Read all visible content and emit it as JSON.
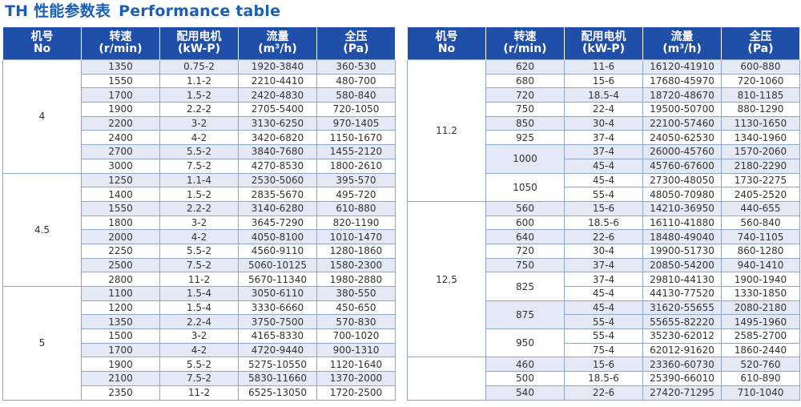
{
  "title": {
    "cn": "TH 性能参数表",
    "en": "Performance table"
  },
  "headers": [
    {
      "line1": "机号",
      "line2": "No"
    },
    {
      "line1": "转速",
      "line2": "(r/min)"
    },
    {
      "line1": "配用电机",
      "line2": "(kW-P)"
    },
    {
      "line1": "流量",
      "line2": "(m³/h)"
    },
    {
      "line1": "全压",
      "line2": "(Pa)"
    }
  ],
  "left_table": [
    {
      "no": "4",
      "rows": [
        {
          "rpm": "1350",
          "motor": "0.75-2",
          "flow": "1920-3840",
          "pressure": "360-530"
        },
        {
          "rpm": "1550",
          "motor": "1.1-2",
          "flow": "2210-4410",
          "pressure": "480-700"
        },
        {
          "rpm": "1700",
          "motor": "1.5-2",
          "flow": "2420-4830",
          "pressure": "580-840"
        },
        {
          "rpm": "1900",
          "motor": "2.2-2",
          "flow": "2705-5400",
          "pressure": "720-1050"
        },
        {
          "rpm": "2200",
          "motor": "3-2",
          "flow": "3130-6250",
          "pressure": "970-1405"
        },
        {
          "rpm": "2400",
          "motor": "4-2",
          "flow": "3420-6820",
          "pressure": "1150-1670"
        },
        {
          "rpm": "2700",
          "motor": "5.5-2",
          "flow": "3840-7680",
          "pressure": "1455-2120"
        },
        {
          "rpm": "3000",
          "motor": "7.5-2",
          "flow": "4270-8530",
          "pressure": "1800-2610"
        }
      ]
    },
    {
      "no": "4.5",
      "rows": [
        {
          "rpm": "1250",
          "motor": "1.1-4",
          "flow": "2530-5060",
          "pressure": "395-570"
        },
        {
          "rpm": "1400",
          "motor": "1.5-2",
          "flow": "2835-5670",
          "pressure": "495-720"
        },
        {
          "rpm": "1550",
          "motor": "2.2-2",
          "flow": "3140-6280",
          "pressure": "610-880"
        },
        {
          "rpm": "1800",
          "motor": "3-2",
          "flow": "3645-7290",
          "pressure": "820-1190"
        },
        {
          "rpm": "2000",
          "motor": "4-2",
          "flow": "4050-8100",
          "pressure": "1010-1470"
        },
        {
          "rpm": "2250",
          "motor": "5.5-2",
          "flow": "4560-9110",
          "pressure": "1280-1860"
        },
        {
          "rpm": "2500",
          "motor": "7.5-2",
          "flow": "5060-10125",
          "pressure": "1580-2300"
        },
        {
          "rpm": "2800",
          "motor": "11-2",
          "flow": "5670-11340",
          "pressure": "1980-2880"
        }
      ]
    },
    {
      "no": "5",
      "rows": [
        {
          "rpm": "1100",
          "motor": "1.5-4",
          "flow": "3050-6110",
          "pressure": "380-550"
        },
        {
          "rpm": "1200",
          "motor": "1.5-4",
          "flow": "3330-6660",
          "pressure": "450-650"
        },
        {
          "rpm": "1350",
          "motor": "2.2-4",
          "flow": "3750-7500",
          "pressure": "570-830"
        },
        {
          "rpm": "1500",
          "motor": "3-2",
          "flow": "4165-8330",
          "pressure": "700-1020"
        },
        {
          "rpm": "1700",
          "motor": "4-2",
          "flow": "4720-9440",
          "pressure": "900-1310"
        },
        {
          "rpm": "1900",
          "motor": "5.5-2",
          "flow": "5275-10550",
          "pressure": "1120-1640"
        },
        {
          "rpm": "2100",
          "motor": "7.5-2",
          "flow": "5830-11660",
          "pressure": "1370-2000"
        },
        {
          "rpm": "2350",
          "motor": "11-2",
          "flow": "6525-13050",
          "pressure": "1720-2500"
        }
      ]
    }
  ],
  "right_table": [
    {
      "no": "11.2",
      "rows": [
        {
          "rpm": "620",
          "motor": "11-6",
          "flow": "16120-41910",
          "pressure": "600-880"
        },
        {
          "rpm": "680",
          "motor": "15-6",
          "flow": "17680-45970",
          "pressure": "720-1060"
        },
        {
          "rpm": "720",
          "motor": "18.5-4",
          "flow": "18720-48670",
          "pressure": "810-1185"
        },
        {
          "rpm": "750",
          "motor": "22-4",
          "flow": "19500-50700",
          "pressure": "880-1290"
        },
        {
          "rpm": "850",
          "motor": "30-4",
          "flow": "22100-57460",
          "pressure": "1130-1650"
        },
        {
          "rpm": "925",
          "motor": "37-4",
          "flow": "24050-62530",
          "pressure": "1340-1960"
        },
        {
          "rpm": "1000",
          "rpm_span": 2,
          "motor": "37-4",
          "flow": "26000-45760",
          "pressure": "1570-2060"
        },
        {
          "motor": "45-4",
          "flow": "45760-67600",
          "pressure": "2180-2290"
        },
        {
          "rpm": "1050",
          "rpm_span": 2,
          "motor": "45-4",
          "flow": "27300-48050",
          "pressure": "1730-2275"
        },
        {
          "motor": "55-4",
          "flow": "48050-70980",
          "pressure": "2405-2520"
        }
      ]
    },
    {
      "no": "12.5",
      "rows": [
        {
          "rpm": "560",
          "motor": "15-6",
          "flow": "14210-36950",
          "pressure": "440-655"
        },
        {
          "rpm": "600",
          "motor": "18.5-6",
          "flow": "16110-41880",
          "pressure": "560-840"
        },
        {
          "rpm": "640",
          "motor": "22-6",
          "flow": "18480-49040",
          "pressure": "740-1105"
        },
        {
          "rpm": "720",
          "motor": "30-4",
          "flow": "19900-51730",
          "pressure": "860-1280"
        },
        {
          "rpm": "750",
          "motor": "37-4",
          "flow": "20850-54200",
          "pressure": "940-1410"
        },
        {
          "rpm": "825",
          "rpm_span": 2,
          "motor": "37-4",
          "flow": "29810-44130",
          "pressure": "1900-1940"
        },
        {
          "motor": "45-4",
          "flow": "44130-77520",
          "pressure": "1330-1850"
        },
        {
          "rpm": "875",
          "rpm_span": 2,
          "motor": "45-4",
          "flow": "31620-55655",
          "pressure": "2080-2180"
        },
        {
          "motor": "55-4",
          "flow": "55655-82220",
          "pressure": "1495-1960"
        },
        {
          "rpm": "950",
          "rpm_span": 2,
          "motor": "55-4",
          "flow": "35230-62012",
          "pressure": "2585-2700"
        },
        {
          "motor": "75-4",
          "flow": "62012-91620",
          "pressure": "1860-2440"
        }
      ]
    },
    {
      "no": "",
      "rows": [
        {
          "rpm": "460",
          "motor": "15-6",
          "flow": "23360-60730",
          "pressure": "520-760"
        },
        {
          "rpm": "500",
          "motor": "18.5-6",
          "flow": "25390-66010",
          "pressure": "610-890"
        },
        {
          "rpm": "540",
          "motor": "22-6",
          "flow": "27420-71295",
          "pressure": "710-1040"
        }
      ]
    }
  ]
}
